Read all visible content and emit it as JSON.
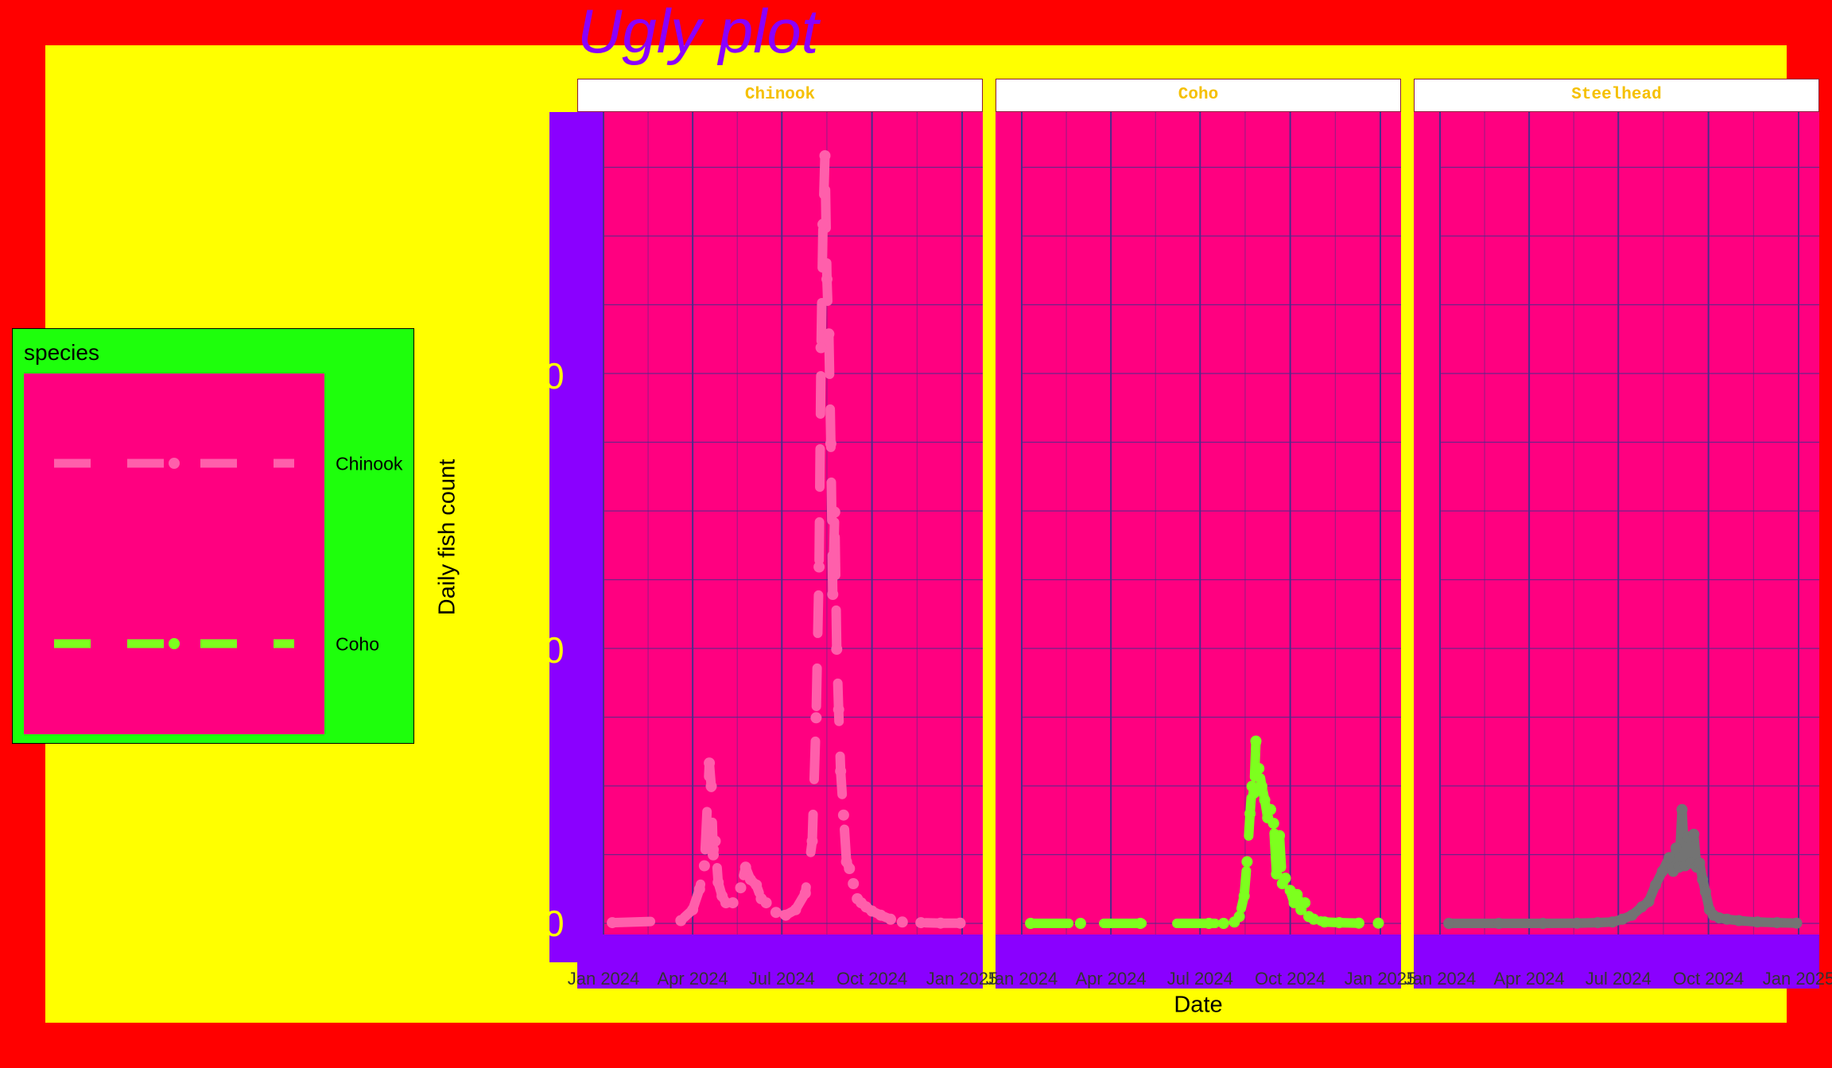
{
  "chart_data": {
    "type": "line",
    "title": "Ugly plot",
    "xlabel": "Date",
    "ylabel": "Daily fish count",
    "legend": {
      "title": "species",
      "position": "left",
      "entries": [
        "Chinook",
        "Coho"
      ]
    },
    "facets": [
      "Chinook",
      "Coho",
      "Steelhead"
    ],
    "x_tick_labels": [
      "Jan 2024",
      "Apr 2024",
      "Jul 2024",
      "Oct 2024",
      "Jan 2025"
    ],
    "y_tick_labels": [
      "0",
      "0",
      "0"
    ],
    "x_range": [
      "2024-01-01",
      "2025-01-01"
    ],
    "grid": true,
    "colors": {
      "background": "#ff0000",
      "plot_background": "#ffff00",
      "panel_background": "#ff0080",
      "axis_band": "#8a00ff",
      "legend_background": "#1eff0c",
      "gridline": "#4b2c8a",
      "title": "#8a00ff",
      "strip_text": "#f5c000",
      "y_tick_text": "#ffff00",
      "Chinook": "#ff5fab",
      "Coho": "#7dff1e",
      "Steelhead": "#737373"
    },
    "series": [
      {
        "name": "Chinook",
        "linetype": "dashed",
        "x": [
          "2024-01-10",
          "2024-03-20",
          "2024-04-01",
          "2024-04-08",
          "2024-04-13",
          "2024-04-18",
          "2024-04-20",
          "2024-04-22",
          "2024-04-24",
          "2024-04-27",
          "2024-05-01",
          "2024-05-05",
          "2024-05-12",
          "2024-05-20",
          "2024-05-25",
          "2024-05-30",
          "2024-06-05",
          "2024-06-10",
          "2024-06-15",
          "2024-06-25",
          "2024-07-05",
          "2024-07-15",
          "2024-07-25",
          "2024-08-01",
          "2024-08-05",
          "2024-08-08",
          "2024-08-10",
          "2024-08-12",
          "2024-08-14",
          "2024-08-16",
          "2024-08-18",
          "2024-08-20",
          "2024-08-22",
          "2024-08-24",
          "2024-08-26",
          "2024-08-28",
          "2024-08-30",
          "2024-09-02",
          "2024-09-05",
          "2024-09-08",
          "2024-09-12",
          "2024-09-16",
          "2024-09-20",
          "2024-09-25",
          "2024-10-01",
          "2024-10-10",
          "2024-10-20",
          "2024-11-01",
          "2024-11-20",
          "2024-12-10",
          "2024-12-30"
        ],
        "y": [
          0.05,
          0.2,
          1,
          2.5,
          4.2,
          11.7,
          10,
          5,
          6,
          3,
          2,
          1.5,
          1.5,
          2.6,
          4.1,
          3.2,
          2.8,
          1.8,
          1.5,
          0.8,
          0.6,
          1.0,
          2.2,
          6.0,
          15,
          26,
          42,
          51,
          56,
          47,
          43,
          35,
          24,
          30,
          20,
          15.6,
          11.1,
          7.9,
          4.5,
          4.0,
          2.9,
          1.8,
          1.5,
          1.2,
          0.9,
          0.6,
          0.3,
          0.1,
          0.05,
          0.02,
          0.02
        ]
      },
      {
        "name": "Coho",
        "linetype": "dashed",
        "x": [
          "2024-01-10",
          "2024-03-01",
          "2024-05-01",
          "2024-07-10",
          "2024-07-25",
          "2024-08-05",
          "2024-08-10",
          "2024-08-15",
          "2024-08-18",
          "2024-08-21",
          "2024-08-23",
          "2024-08-25",
          "2024-08-27",
          "2024-08-30",
          "2024-09-02",
          "2024-09-05",
          "2024-09-08",
          "2024-09-11",
          "2024-09-14",
          "2024-09-17",
          "2024-09-20",
          "2024-09-23",
          "2024-09-26",
          "2024-10-01",
          "2024-10-05",
          "2024-10-08",
          "2024-10-12",
          "2024-10-16",
          "2024-10-20",
          "2024-10-25",
          "2024-11-05",
          "2024-11-20",
          "2024-12-10",
          "2024-12-30"
        ],
        "y": [
          0,
          0,
          0,
          0,
          0,
          0.1,
          0.5,
          2,
          4.5,
          8,
          10,
          9.5,
          13.3,
          11.3,
          10,
          9,
          7.7,
          8.3,
          7.3,
          3.6,
          6.4,
          2.9,
          3.3,
          2.4,
          1.5,
          2.1,
          1.0,
          1.5,
          0.5,
          0.3,
          0.1,
          0.05,
          0.02,
          0.02
        ]
      },
      {
        "name": "Steelhead",
        "linetype": "solid",
        "x": [
          "2024-01-10",
          "2024-03-01",
          "2024-04-15",
          "2024-05-20",
          "2024-06-10",
          "2024-06-25",
          "2024-07-05",
          "2024-07-15",
          "2024-07-25",
          "2024-08-01",
          "2024-08-08",
          "2024-08-15",
          "2024-08-22",
          "2024-08-26",
          "2024-08-29",
          "2024-09-01",
          "2024-09-04",
          "2024-09-07",
          "2024-09-10",
          "2024-09-13",
          "2024-09-16",
          "2024-09-19",
          "2024-09-22",
          "2024-09-25",
          "2024-09-28",
          "2024-10-02",
          "2024-10-06",
          "2024-10-12",
          "2024-10-20",
          "2024-11-01",
          "2024-11-20",
          "2024-12-10",
          "2024-12-30"
        ],
        "y": [
          0,
          0,
          0,
          0.02,
          0.05,
          0.1,
          0.3,
          0.6,
          1.2,
          1.6,
          2.8,
          3.8,
          4.8,
          3.8,
          5.5,
          4.1,
          8.3,
          4.2,
          6.3,
          4.4,
          6.5,
          4.1,
          4.4,
          3.2,
          2.3,
          1.0,
          0.6,
          0.4,
          0.3,
          0.2,
          0.1,
          0.05,
          0.02
        ]
      }
    ]
  }
}
